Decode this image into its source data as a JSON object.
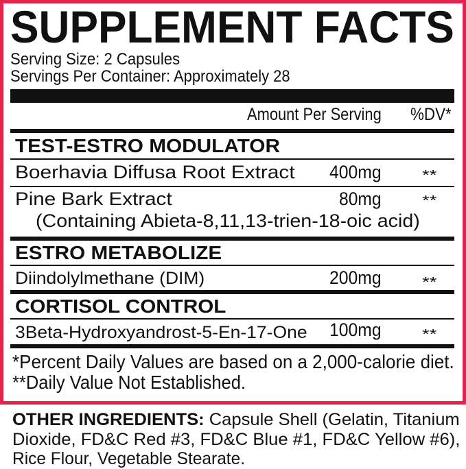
{
  "title": "SUPPLEMENT FACTS",
  "serving_size": "Serving Size: 2 Capsules",
  "servings_per_container": "Servings Per Container: Approximately 28",
  "columns": {
    "amount": "Amount Per Serving",
    "dv": "%DV*"
  },
  "sections": [
    {
      "heading": "TEST-ESTRO MODULATOR",
      "items": [
        {
          "name": "Boerhavia Diffusa Root Extract",
          "amount": "400mg",
          "dv": "**"
        },
        {
          "name": "Pine Bark Extract",
          "amount": "80mg",
          "dv": "**",
          "note": "(Containing Abieta-8,11,13-trien-18-oic acid)"
        }
      ]
    },
    {
      "heading": "ESTRO METABOLIZE",
      "items": [
        {
          "name": "Diindolylmethane (DIM)",
          "amount": "200mg",
          "dv": "**"
        }
      ]
    },
    {
      "heading": "CORTISOL CONTROL",
      "items": [
        {
          "name": "3Beta-Hydroxyandrost-5-En-17-One",
          "amount": "100mg",
          "dv": "**"
        }
      ]
    }
  ],
  "footnotes": [
    "*Percent Daily Values are based on a 2,000-calorie diet.",
    "**Daily Value Not Established."
  ],
  "other_ingredients": {
    "label": "OTHER INGREDIENTS:",
    "line1": " Capsule Shell (Gelatin, Titanium",
    "line2": "Dioxide, FD&C Red #3, FD&C Blue #1, FD&C Yellow #6),",
    "line3": "Rice Flour, Vegetable Stearate."
  },
  "colors": {
    "border": "#e3234d",
    "text": "#111111"
  }
}
